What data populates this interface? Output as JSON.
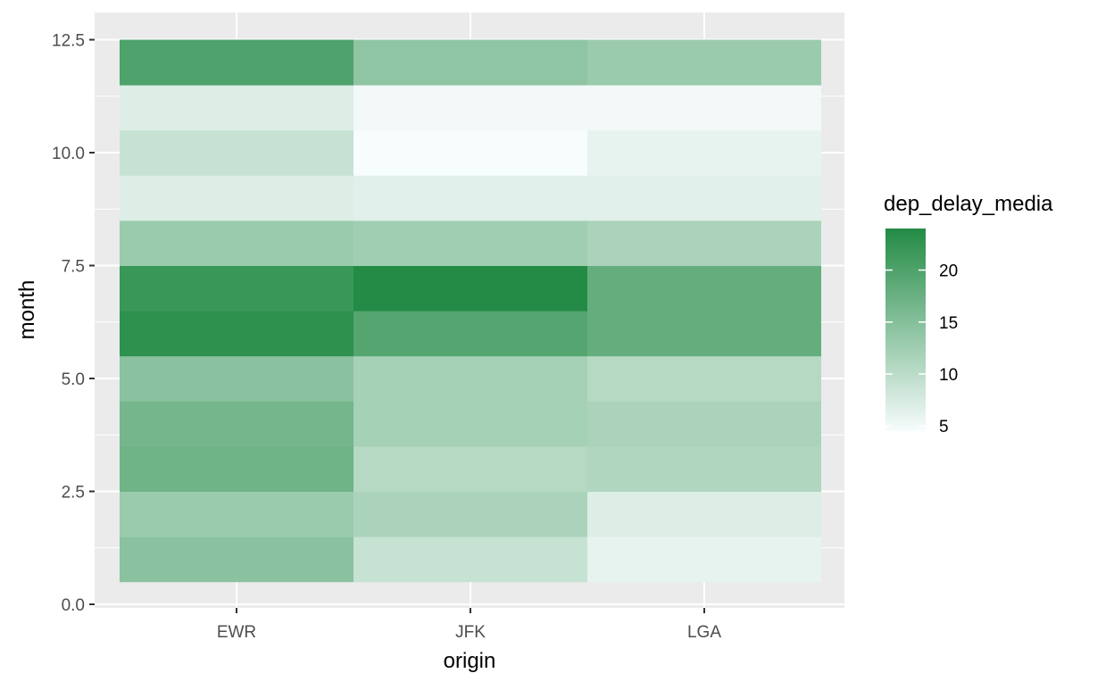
{
  "chart_data": {
    "type": "heatmap",
    "xlabel": "origin",
    "ylabel": "month",
    "categories": [
      "EWR",
      "JFK",
      "LGA"
    ],
    "ylim": [
      0,
      12.5
    ],
    "y_ticks": [
      0.0,
      2.5,
      5.0,
      7.5,
      10.0,
      12.5
    ],
    "y_tick_labels": [
      "0.0",
      "2.5",
      "5.0",
      "7.5",
      "10.0",
      "12.5"
    ],
    "grid": true,
    "legend": {
      "title": "dep_delay_media",
      "placement": "right",
      "range": [
        4.5,
        24
      ],
      "ticks": [
        5,
        10,
        15,
        20
      ],
      "tick_labels": [
        "5",
        "10",
        "15",
        "20"
      ]
    },
    "colors": {
      "low": "#f7fcfd",
      "high": "#238b45",
      "panel": "#ebebeb",
      "grid": "#ffffff"
    },
    "cells": [
      {
        "origin": "EWR",
        "month": 1,
        "value": 14.5
      },
      {
        "origin": "EWR",
        "month": 2,
        "value": 13.0
      },
      {
        "origin": "EWR",
        "month": 3,
        "value": 17.0
      },
      {
        "origin": "EWR",
        "month": 4,
        "value": 16.5
      },
      {
        "origin": "EWR",
        "month": 5,
        "value": 14.5
      },
      {
        "origin": "EWR",
        "month": 6,
        "value": 23.0
      },
      {
        "origin": "EWR",
        "month": 7,
        "value": 22.0
      },
      {
        "origin": "EWR",
        "month": 8,
        "value": 13.0
      },
      {
        "origin": "EWR",
        "month": 9,
        "value": 7.0
      },
      {
        "origin": "EWR",
        "month": 10,
        "value": 9.0
      },
      {
        "origin": "EWR",
        "month": 11,
        "value": 7.0
      },
      {
        "origin": "EWR",
        "month": 12,
        "value": 20.0
      },
      {
        "origin": "JFK",
        "month": 1,
        "value": 9.0
      },
      {
        "origin": "JFK",
        "month": 2,
        "value": 11.5
      },
      {
        "origin": "JFK",
        "month": 3,
        "value": 10.5
      },
      {
        "origin": "JFK",
        "month": 4,
        "value": 12.0
      },
      {
        "origin": "JFK",
        "month": 5,
        "value": 12.0
      },
      {
        "origin": "JFK",
        "month": 6,
        "value": 19.5
      },
      {
        "origin": "JFK",
        "month": 7,
        "value": 24.0
      },
      {
        "origin": "JFK",
        "month": 8,
        "value": 12.5
      },
      {
        "origin": "JFK",
        "month": 9,
        "value": 6.5
      },
      {
        "origin": "JFK",
        "month": 10,
        "value": 4.5
      },
      {
        "origin": "JFK",
        "month": 11,
        "value": 5.0
      },
      {
        "origin": "JFK",
        "month": 12,
        "value": 14.0
      },
      {
        "origin": "LGA",
        "month": 1,
        "value": 6.0
      },
      {
        "origin": "LGA",
        "month": 2,
        "value": 7.0
      },
      {
        "origin": "LGA",
        "month": 3,
        "value": 11.0
      },
      {
        "origin": "LGA",
        "month": 4,
        "value": 11.5
      },
      {
        "origin": "LGA",
        "month": 5,
        "value": 10.5
      },
      {
        "origin": "LGA",
        "month": 6,
        "value": 18.0
      },
      {
        "origin": "LGA",
        "month": 7,
        "value": 18.0
      },
      {
        "origin": "LGA",
        "month": 8,
        "value": 11.5
      },
      {
        "origin": "LGA",
        "month": 9,
        "value": 6.5
      },
      {
        "origin": "LGA",
        "month": 10,
        "value": 6.0
      },
      {
        "origin": "LGA",
        "month": 11,
        "value": 5.0
      },
      {
        "origin": "LGA",
        "month": 12,
        "value": 13.0
      }
    ]
  }
}
